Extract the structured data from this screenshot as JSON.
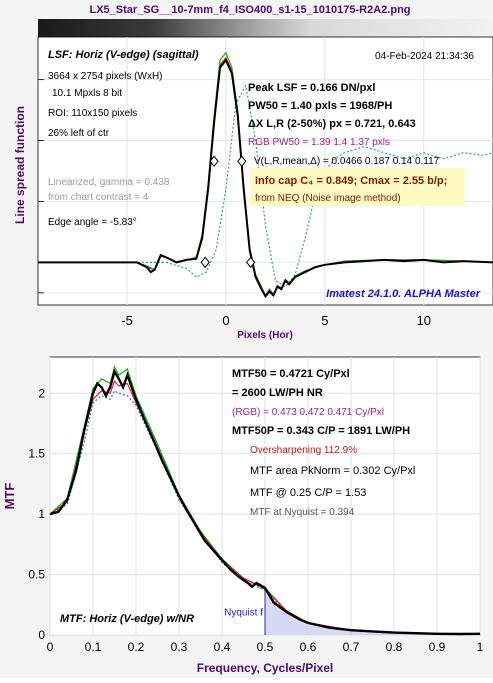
{
  "title": "LX5_Star_SG__10-7mm_f4_ISO400_s1-15_1010175-R2A2.png",
  "colors": {
    "black": "#000000",
    "red": "#e0202b",
    "green": "#10b010",
    "blue": "#2a6fd6",
    "teal": "#2aa08a",
    "purple": "#7a1a7a",
    "magenta": "#a0208a",
    "box": "#fff9c4",
    "accent_blue": "#1414c8",
    "axis_label_purple": "#4a0a6a"
  },
  "lsf": {
    "annot_left": {
      "heading": "LSF: Horiz (V-edge) (sagittal)",
      "pixels": "3664 x 2754 pixels (WxH)",
      "mpxls": "10.1 Mpxls   8 bit",
      "roi": "ROI:  110x150 pixels",
      "offset": "26% left of ctr",
      "gamma": "Linearized, gamma = 0.438",
      "contrast": "from chart contrast = 4",
      "edge_angle": "Edge angle = -5.83°"
    },
    "annot_right": {
      "date": "04-Feb-2024 21:34:36",
      "peak": "Peak LSF =  0.166 DN/pxl",
      "pw50": "PW50 = 1.40 pxls =  1968/PH",
      "dx": "ΔX L,R (2-50%) px = 0.721, 0.643",
      "rgb_pw50": "RGB PW50 =   1.39     1.4    1.37 pxls",
      "v": "V(L,R,mean,Δ) = 0.0466  0.187  0.14  0.117",
      "info_cap": "Info cap C₄ = 0.849;  Cmax = 2.55 b/p;",
      "neq": "from NEQ (Noise image method)",
      "imatest": "Imatest 24.1.0. ALPHA Master"
    }
  },
  "mtf": {
    "annot": {
      "mtf50": "MTF50 = 0.4721 Cy/Pxl",
      "lwph": "= 2600 LW/PH  NR",
      "rgb": "(RGB) = 0.473  0.472  0.471 Cy/Pxl",
      "mtf50p": "MTF50P = 0.343 C/P = 1891 LW/PH",
      "oversharp": "Oversharpening 112.9%",
      "area": "MTF area PkNorm = 0.302 Cy/Pxl",
      "at025": "MTF @ 0.25 C/P = 1.53",
      "nyq": "MTF at Nyquist = 0.394",
      "label": "MTF: Horiz (V-edge) w/NR",
      "nyq_label": "Nyquist f"
    }
  },
  "chart_data": [
    {
      "type": "line",
      "title": "",
      "xlabel": "Pixels (Hor)",
      "ylabel": "Line spread function",
      "xlim": [
        -9.5,
        13.5
      ],
      "ylim": [
        -0.035,
        0.185
      ],
      "xticks": [
        -5,
        0,
        5,
        10
      ],
      "grid": true,
      "series": [
        {
          "color": "black",
          "x": [
            -9.5,
            -6,
            -4.5,
            -4,
            -3.8,
            -3.6,
            -3.3,
            -3,
            -2.5,
            -2,
            -1.5,
            -1.2,
            -0.9,
            -0.6,
            -0.3,
            0,
            0.3,
            0.6,
            0.9,
            1.2,
            1.5,
            1.8,
            2,
            2.2,
            2.4,
            2.6,
            2.8,
            3,
            3.2,
            3.5,
            4,
            4.5,
            5,
            6,
            7,
            8,
            9,
            10,
            11,
            12,
            13.5
          ],
          "y": [
            0,
            0,
            0,
            -0.004,
            -0.008,
            -0.006,
            0.006,
            0.004,
            0,
            0.002,
            0.003,
            0.02,
            0.06,
            0.115,
            0.16,
            0.166,
            0.155,
            0.12,
            0.06,
            0.01,
            -0.012,
            -0.022,
            -0.028,
            -0.024,
            -0.027,
            -0.02,
            -0.022,
            -0.015,
            -0.018,
            -0.012,
            -0.008,
            -0.004,
            -0.002,
            0,
            0.001,
            0.002,
            0.001,
            0.002,
            0,
            0.001,
            0
          ]
        },
        {
          "color": "red",
          "x": [
            -9.5,
            -6,
            -4.5,
            -4,
            -3.6,
            -3.3,
            -3,
            -2.5,
            -2,
            -1.5,
            -1.2,
            -0.9,
            -0.6,
            -0.3,
            0,
            0.3,
            0.6,
            0.9,
            1.2,
            1.5,
            1.8,
            2,
            2.2,
            2.4,
            2.6,
            2.8,
            3,
            3.2,
            3.5,
            4,
            5,
            6,
            8,
            10,
            12,
            13.5
          ],
          "y": [
            0,
            0,
            0,
            -0.004,
            -0.006,
            0.005,
            0.004,
            0,
            0.002,
            0.004,
            0.022,
            0.062,
            0.118,
            0.162,
            0.168,
            0.157,
            0.122,
            0.062,
            0.012,
            -0.01,
            -0.02,
            -0.027,
            -0.022,
            -0.026,
            -0.019,
            -0.021,
            -0.014,
            -0.017,
            -0.011,
            -0.007,
            -0.002,
            0.001,
            0.002,
            0.002,
            0.001,
            0
          ]
        },
        {
          "color": "green",
          "x": [
            -9.5,
            -6,
            -4.5,
            -4,
            -3.6,
            -3.3,
            -3,
            -2.5,
            -2,
            -1.5,
            -1.2,
            -0.9,
            -0.6,
            -0.3,
            0,
            0.3,
            0.6,
            0.9,
            1.2,
            1.5,
            1.8,
            2,
            2.2,
            2.4,
            2.6,
            2.8,
            3,
            3.2,
            3.5,
            4,
            5,
            6,
            8,
            10,
            12,
            13.5
          ],
          "y": [
            0,
            0,
            0,
            -0.003,
            -0.006,
            0.005,
            0.004,
            0,
            0.002,
            0.004,
            0.023,
            0.064,
            0.12,
            0.166,
            0.172,
            0.16,
            0.124,
            0.063,
            0.012,
            -0.011,
            -0.021,
            -0.027,
            -0.023,
            -0.026,
            -0.02,
            -0.021,
            -0.015,
            -0.017,
            -0.011,
            -0.007,
            -0.002,
            0.001,
            0.002,
            0.002,
            0.001,
            0
          ]
        },
        {
          "color": "teal",
          "dashed": true,
          "x": [
            -9.5,
            -5,
            -3,
            -2,
            -1.5,
            -1,
            -0.5,
            0,
            0.5,
            1,
            1.5,
            2,
            2.5,
            3,
            3.5,
            4,
            4.5,
            5,
            5.5,
            6,
            7,
            8,
            9,
            10,
            11,
            12,
            13,
            13.5
          ],
          "y": [
            0,
            0,
            0,
            -0.005,
            -0.012,
            -0.008,
            0.01,
            0.06,
            0.13,
            0.145,
            0.1,
            0.03,
            -0.015,
            -0.02,
            -0.01,
            0.02,
            0.055,
            0.075,
            0.085,
            0.09,
            0.095,
            0.09,
            0.085,
            0.09,
            0.085,
            0.09,
            0.088,
            0.09
          ]
        }
      ],
      "markers": [
        {
          "x": -1.05,
          "y": 0.0
        },
        {
          "x": -0.6,
          "y": 0.083
        },
        {
          "x": 0.8,
          "y": 0.083
        },
        {
          "x": 1.25,
          "y": 0.0
        }
      ]
    },
    {
      "type": "line",
      "title": "",
      "xlabel": "Frequency, Cycles/Pixel",
      "ylabel": "MTF",
      "xlim": [
        0,
        1
      ],
      "ylim": [
        0,
        2.3
      ],
      "xticks": [
        0,
        0.1,
        0.2,
        0.3,
        0.4,
        0.5,
        0.6,
        0.7,
        0.8,
        0.9,
        1
      ],
      "yticks": [
        0,
        0.5,
        1,
        1.5,
        2
      ],
      "grid": true,
      "nyquist": 0.5,
      "series": [
        {
          "color": "black",
          "x": [
            0,
            0.02,
            0.04,
            0.06,
            0.08,
            0.1,
            0.11,
            0.12,
            0.13,
            0.14,
            0.15,
            0.16,
            0.17,
            0.18,
            0.19,
            0.2,
            0.22,
            0.24,
            0.26,
            0.28,
            0.3,
            0.32,
            0.34,
            0.36,
            0.38,
            0.4,
            0.42,
            0.44,
            0.46,
            0.47,
            0.48,
            0.5,
            0.52,
            0.55,
            0.58,
            0.6,
            0.65,
            0.7,
            0.75,
            0.8,
            0.85,
            0.9,
            0.95,
            1.0
          ],
          "y": [
            1.0,
            1.02,
            1.12,
            1.35,
            1.7,
            2.0,
            2.08,
            2.05,
            1.98,
            2.05,
            2.18,
            2.12,
            2.05,
            2.15,
            2.05,
            1.95,
            1.78,
            1.62,
            1.45,
            1.3,
            1.15,
            1.02,
            0.9,
            0.78,
            0.7,
            0.62,
            0.54,
            0.48,
            0.43,
            0.4,
            0.43,
            0.39,
            0.27,
            0.19,
            0.13,
            0.1,
            0.06,
            0.04,
            0.03,
            0.02,
            0.015,
            0.01,
            0.008,
            0.01
          ]
        },
        {
          "color": "red",
          "x": [
            0,
            0.04,
            0.08,
            0.1,
            0.12,
            0.14,
            0.15,
            0.16,
            0.18,
            0.2,
            0.25,
            0.3,
            0.35,
            0.4,
            0.45,
            0.5,
            0.55,
            0.6,
            0.7,
            0.8,
            0.9,
            1.0
          ],
          "y": [
            1.0,
            1.1,
            1.68,
            1.95,
            2.02,
            2.0,
            2.1,
            2.06,
            2.08,
            1.92,
            1.55,
            1.14,
            0.85,
            0.62,
            0.47,
            0.38,
            0.2,
            0.1,
            0.04,
            0.02,
            0.01,
            0.01
          ]
        },
        {
          "color": "green",
          "x": [
            0,
            0.04,
            0.08,
            0.1,
            0.12,
            0.14,
            0.15,
            0.16,
            0.18,
            0.2,
            0.25,
            0.3,
            0.35,
            0.4,
            0.45,
            0.5,
            0.55,
            0.6,
            0.7,
            0.8,
            0.9,
            1.0
          ],
          "y": [
            1.0,
            1.13,
            1.73,
            2.04,
            2.12,
            2.08,
            2.22,
            2.15,
            2.2,
            1.98,
            1.58,
            1.16,
            0.86,
            0.63,
            0.47,
            0.39,
            0.2,
            0.1,
            0.04,
            0.02,
            0.01,
            0.01
          ]
        },
        {
          "color": "blue",
          "dashed": true,
          "x": [
            0,
            0.04,
            0.08,
            0.1,
            0.12,
            0.14,
            0.15,
            0.16,
            0.18,
            0.2,
            0.25,
            0.3,
            0.35,
            0.4,
            0.45,
            0.5,
            0.55,
            0.6,
            0.7,
            0.8,
            0.9,
            1.0
          ],
          "y": [
            1.0,
            1.08,
            1.6,
            1.92,
            1.98,
            1.95,
            2.02,
            2.0,
            1.98,
            1.9,
            1.52,
            1.12,
            0.84,
            0.6,
            0.45,
            0.37,
            0.19,
            0.1,
            0.04,
            0.02,
            0.01,
            0.01
          ]
        }
      ]
    }
  ]
}
